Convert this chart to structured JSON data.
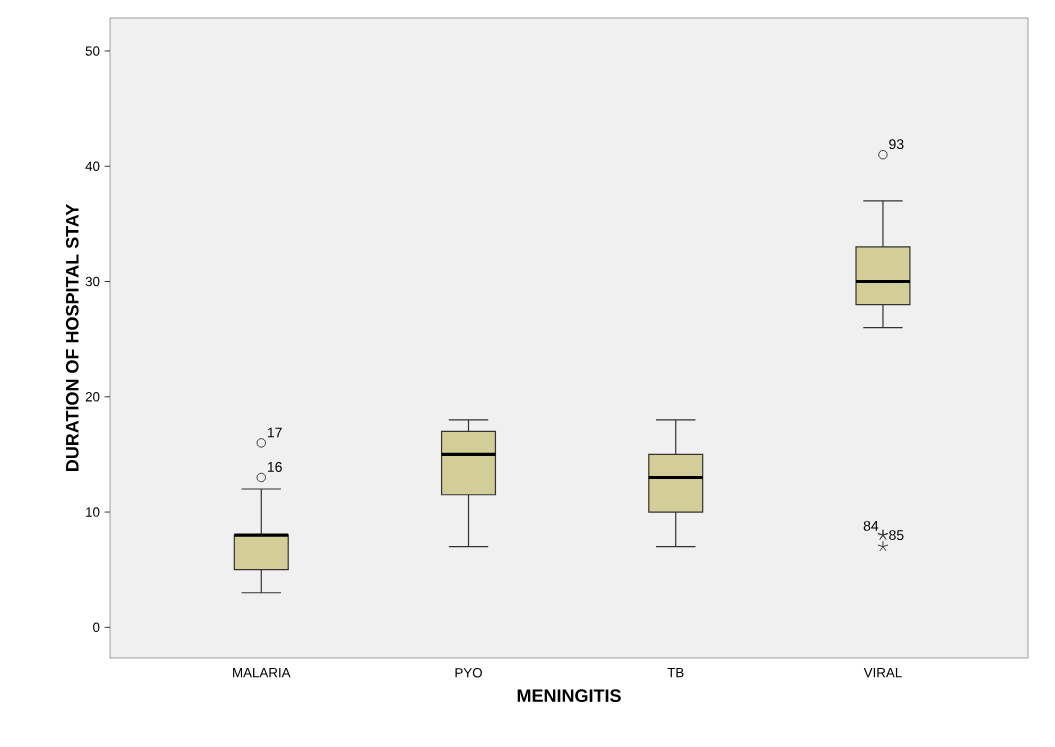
{
  "chart_data": {
    "type": "box",
    "xlabel": "MENINGITIS",
    "ylabel": "DURATION OF HOSPITAL STAY",
    "categories": [
      "MALARIA",
      "PYO",
      "TB",
      "VIRAL"
    ],
    "boxes": [
      {
        "low": 3,
        "q1": 5,
        "median": 8,
        "q3": 8,
        "high": 12,
        "outliers": [
          16,
          13
        ]
      },
      {
        "low": 7,
        "q1": 11.5,
        "median": 15,
        "q3": 17,
        "high": 18
      },
      {
        "low": 7,
        "q1": 10,
        "median": 13,
        "q3": 15,
        "high": 18
      },
      {
        "low": 26,
        "q1": 28,
        "median": 30,
        "q3": 33,
        "high": 37,
        "outliers": [
          41,
          8,
          8,
          7
        ]
      }
    ],
    "color": "#d3cd97",
    "ylim": [
      -2.66,
      52.86
    ],
    "yticks": [
      0,
      10,
      20,
      30,
      40,
      50
    ],
    "annotations": [
      "17",
      "16",
      "93",
      "84",
      "85"
    ],
    "grid": false
  }
}
